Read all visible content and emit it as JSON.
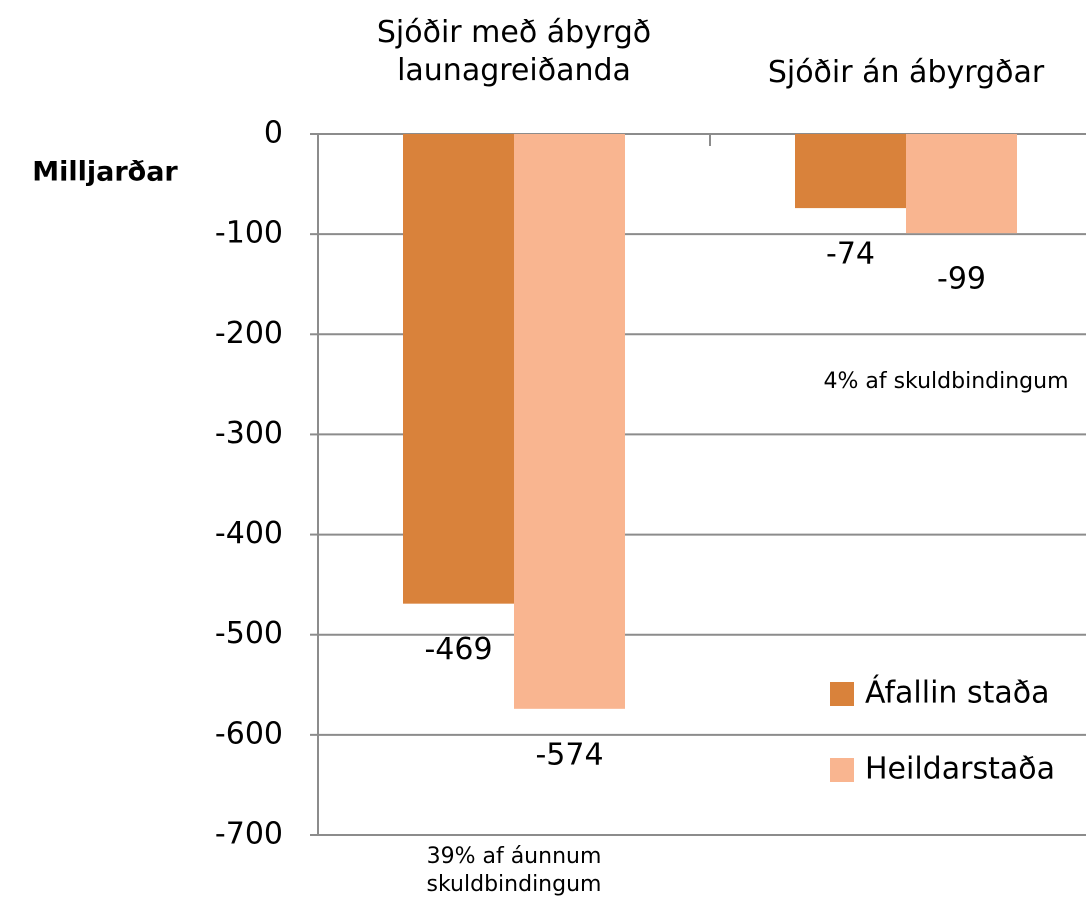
{
  "chart_data": {
    "type": "bar",
    "categories": [
      "Sjóðir með ábyrgð launagreiðanda",
      "Sjóðir án ábyrgðar"
    ],
    "series": [
      {
        "name": "Áfallin staða",
        "color": "#d9823b",
        "values": [
          -469,
          -74
        ]
      },
      {
        "name": "Heildarstaða",
        "color": "#f9b590",
        "values": [
          -574,
          -99
        ]
      }
    ],
    "y_label": "Milljarðar",
    "ylim": [
      -700,
      0
    ],
    "yticks": [
      0,
      -100,
      -200,
      -300,
      -400,
      -500,
      -600,
      -700
    ],
    "grid": true,
    "legend": "lower right",
    "annotations": [
      "39% af áunnum skuldbindingum",
      "4% af skuldbindingum"
    ]
  }
}
